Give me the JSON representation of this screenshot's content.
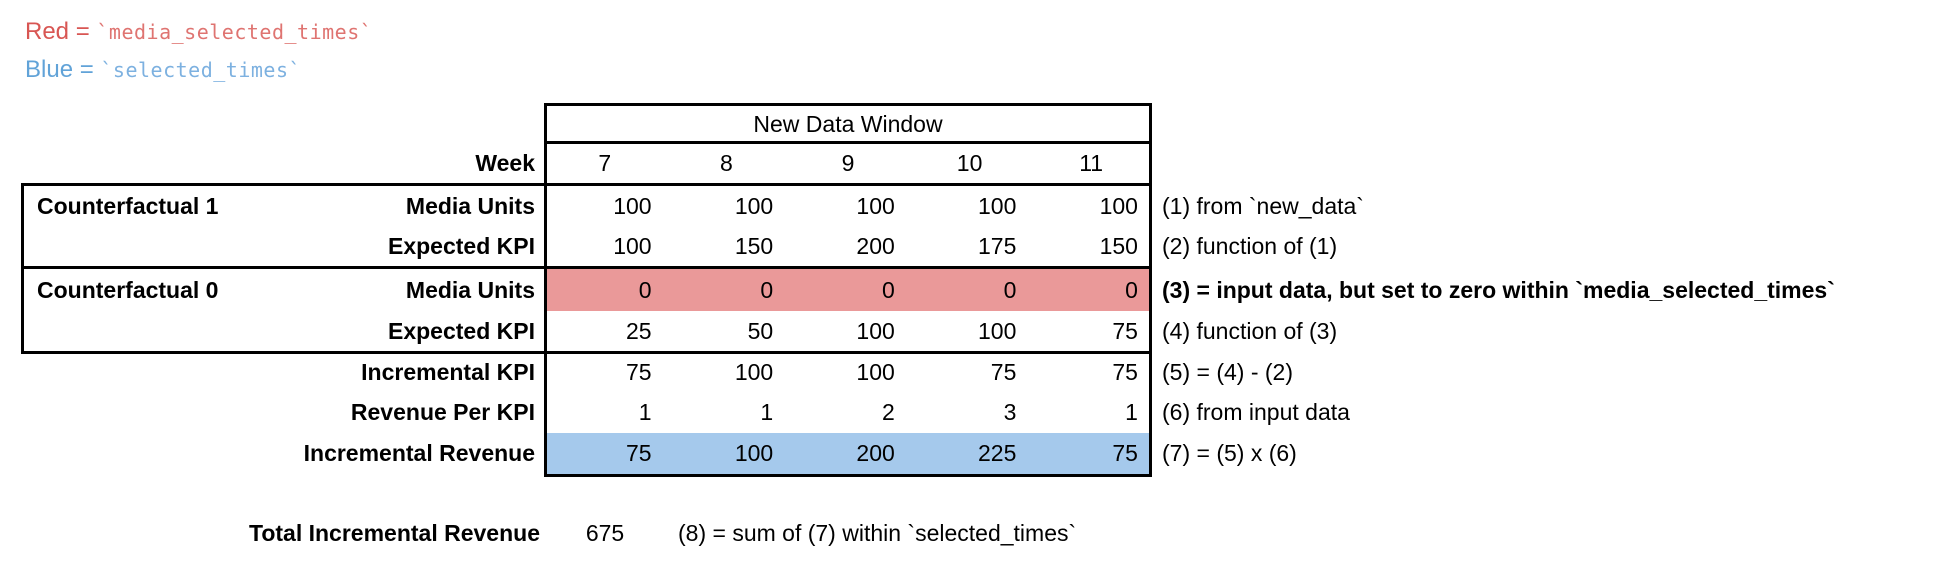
{
  "legend": {
    "red": {
      "label": "Red = ",
      "code": "`media_selected_times`"
    },
    "blue": {
      "label": "Blue = ",
      "code": "`selected_times`"
    }
  },
  "table": {
    "window_label": "New Data Window",
    "week_label": "Week",
    "weeks": [
      "7",
      "8",
      "9",
      "10",
      "11"
    ],
    "groups": [
      "Counterfactual 1",
      "Counterfactual 0"
    ],
    "rows": [
      {
        "label": "Media Units",
        "values": [
          "100",
          "100",
          "100",
          "100",
          "100"
        ],
        "annotation": "(1) from `new_data`"
      },
      {
        "label": "Expected KPI",
        "values": [
          "100",
          "150",
          "200",
          "175",
          "150"
        ],
        "annotation": "(2) function of (1)"
      },
      {
        "label": "Media Units",
        "values": [
          "0",
          "0",
          "0",
          "0",
          "0"
        ],
        "annotation": "(3) = input data, but set to zero within `media_selected_times`",
        "highlight": "red"
      },
      {
        "label": "Expected KPI",
        "values": [
          "25",
          "50",
          "100",
          "100",
          "75"
        ],
        "annotation": "(4) function of (3)"
      },
      {
        "label": "Incremental KPI",
        "values": [
          "75",
          "100",
          "100",
          "75",
          "75"
        ],
        "annotation": "(5) = (4) - (2)"
      },
      {
        "label": "Revenue Per KPI",
        "values": [
          "1",
          "1",
          "2",
          "3",
          "1"
        ],
        "annotation": "(6) from input data"
      },
      {
        "label": "Incremental Revenue",
        "values": [
          "75",
          "100",
          "200",
          "225",
          "75"
        ],
        "annotation": "(7) = (5) x (6)",
        "highlight": "blue"
      }
    ]
  },
  "total": {
    "label": "Total Incremental Revenue",
    "value": "675",
    "annotation": "(8) = sum of (7) within `selected_times`"
  },
  "colors": {
    "red_fill": "#ea9999",
    "blue_fill": "#a5c9ec",
    "red_text_label": "#d85653",
    "red_text_code": "#df7471",
    "blue_text_label": "#61a3d8",
    "blue_text_code": "#7db1e0",
    "border": "#000000"
  }
}
